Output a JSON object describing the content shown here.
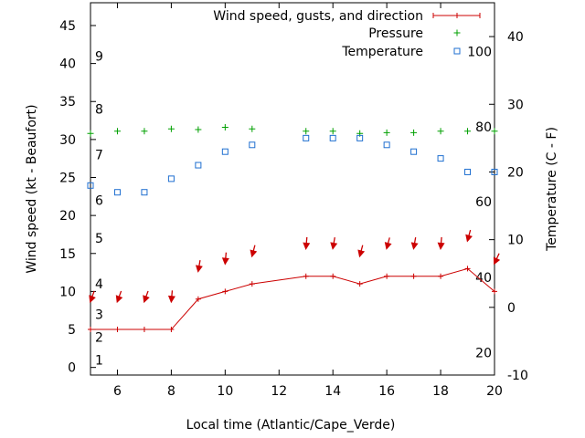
{
  "chart_data": {
    "type": "line",
    "xlabel": "Local time (Atlantic/Cape_Verde)",
    "ylabel_left": "Wind speed (kt - Beaufort)",
    "ylabel_right": "Temperature (C - F)",
    "xlim": [
      5,
      20
    ],
    "ylim_left": [
      -1,
      48
    ],
    "ylim_right": [
      -10,
      45
    ],
    "x_ticks": [
      6,
      8,
      10,
      12,
      14,
      16,
      18,
      20
    ],
    "y_ticks_left": [
      0,
      5,
      10,
      15,
      20,
      25,
      30,
      35,
      40,
      45
    ],
    "y_ticks_right": [
      -10,
      0,
      10,
      20,
      30,
      40
    ],
    "beaufort_labels": [
      {
        "label": "1",
        "value": 1.0
      },
      {
        "label": "2",
        "value": 4.0
      },
      {
        "label": "3",
        "value": 7.0
      },
      {
        "label": "4",
        "value": 11.0
      },
      {
        "label": "5",
        "value": 17.0
      },
      {
        "label": "6",
        "value": 22.0
      },
      {
        "label": "7",
        "value": 28.0
      },
      {
        "label": "8",
        "value": 34.0
      },
      {
        "label": "9",
        "value": 41.0
      }
    ],
    "fahrenheit_labels": [
      {
        "label": "20",
        "value": -6.7
      },
      {
        "label": "40",
        "value": 4.4
      },
      {
        "label": "60",
        "value": 15.6
      },
      {
        "label": "80",
        "value": 26.7
      },
      {
        "label": "100",
        "value": 37.8
      }
    ],
    "legend": [
      {
        "label": "Wind speed, gusts, and direction",
        "color": "#cc0000",
        "marker": "line-plus"
      },
      {
        "label": "Pressure",
        "color": "#00a000",
        "marker": "plus"
      },
      {
        "label": "Temperature",
        "color": "#1f6fd0",
        "marker": "square"
      }
    ],
    "series": [
      {
        "name": "Wind speed",
        "axis": "left",
        "x": [
          5,
          6,
          7,
          8,
          9,
          10,
          11,
          13,
          14,
          15,
          16,
          17,
          18,
          19,
          20
        ],
        "values": [
          5,
          5,
          5,
          5,
          9,
          10,
          11,
          12,
          12,
          11,
          12,
          12,
          12,
          13,
          10
        ]
      },
      {
        "name": "Wind direction",
        "axis": "left",
        "x": [
          5,
          6,
          7,
          8,
          9,
          10,
          11,
          13,
          14,
          15,
          16,
          17,
          18,
          19,
          20
        ],
        "values": [
          8.7,
          8.7,
          8.7,
          8.7,
          12.7,
          13.7,
          14.7,
          15.7,
          15.7,
          14.7,
          15.7,
          15.7,
          15.7,
          16.7,
          13.7
        ],
        "angle_deg": [
          20,
          20,
          20,
          5,
          10,
          5,
          15,
          5,
          10,
          15,
          15,
          10,
          5,
          15,
          25
        ]
      },
      {
        "name": "Pressure",
        "axis": "left",
        "x": [
          5,
          6,
          7,
          8,
          9,
          10,
          11,
          13,
          14,
          15,
          16,
          17,
          18,
          19,
          20
        ],
        "values": [
          30.8,
          31.1,
          31.1,
          31.4,
          31.3,
          31.6,
          31.4,
          31.1,
          31.1,
          30.8,
          30.9,
          30.9,
          31.1,
          31.1,
          31.1
        ]
      },
      {
        "name": "Temperature",
        "axis": "right",
        "x": [
          5,
          6,
          7,
          8,
          9,
          10,
          11,
          13,
          14,
          15,
          16,
          17,
          18,
          19,
          20
        ],
        "values": [
          18,
          17,
          17,
          19,
          21,
          23,
          24,
          25,
          25,
          25,
          24,
          23,
          22,
          20,
          20
        ]
      }
    ]
  }
}
